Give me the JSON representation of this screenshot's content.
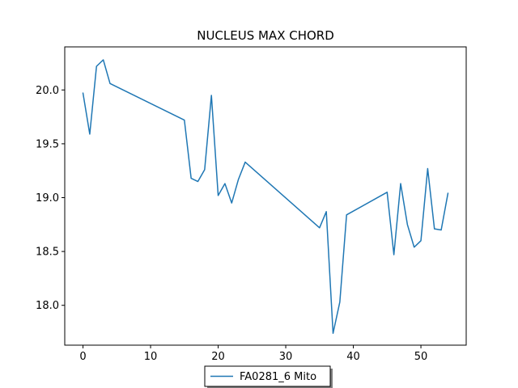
{
  "chart_data": {
    "type": "line",
    "title": "NUCLEUS MAX CHORD",
    "xlabel": "",
    "ylabel": "",
    "xlim": [
      -2.7,
      56.7
    ],
    "ylim": [
      17.63,
      20.4
    ],
    "xticks": [
      0,
      10,
      20,
      30,
      40,
      50
    ],
    "xtick_labels": [
      "0",
      "10",
      "20",
      "30",
      "40",
      "50"
    ],
    "yticks": [
      18.0,
      18.5,
      19.0,
      19.5,
      20.0
    ],
    "ytick_labels": [
      "18.0",
      "18.5",
      "19.0",
      "19.5",
      "20.0"
    ],
    "grid": false,
    "legend_position": "bottom-center-outside",
    "series": [
      {
        "name": "FA0281_6 Mito",
        "color": "#1f77b4",
        "x": [
          0,
          1,
          2,
          3,
          4,
          15,
          16,
          17,
          18,
          19,
          20,
          21,
          22,
          23,
          24,
          35,
          36,
          37,
          38,
          39,
          45,
          46,
          47,
          48,
          49,
          50,
          51,
          52,
          53,
          54
        ],
        "y": [
          19.97,
          19.59,
          20.22,
          20.28,
          20.06,
          19.72,
          19.18,
          19.15,
          19.26,
          19.95,
          19.02,
          19.13,
          18.95,
          19.17,
          19.33,
          18.72,
          18.87,
          17.74,
          18.03,
          18.84,
          19.05,
          18.47,
          19.13,
          18.75,
          18.54,
          18.6,
          19.27,
          18.71,
          18.7,
          19.04
        ]
      }
    ]
  }
}
